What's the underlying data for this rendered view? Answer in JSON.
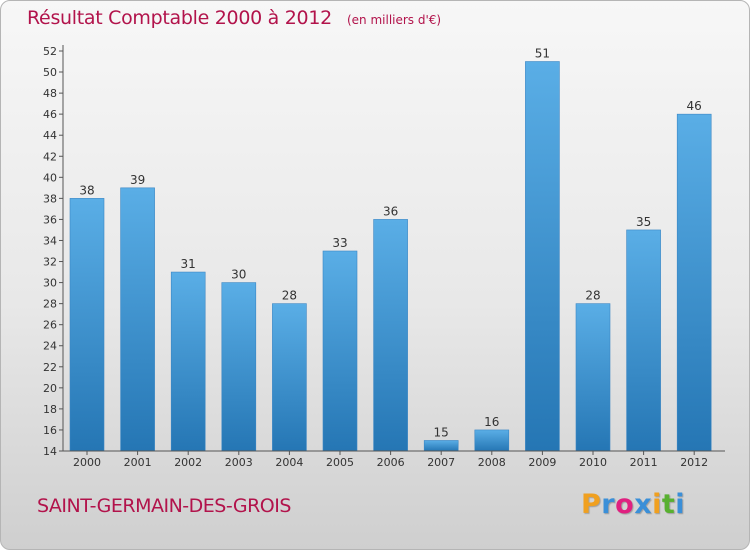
{
  "chart_data": {
    "type": "bar",
    "title": "Résultat Comptable 2000 à 2012",
    "subtitle": "(en milliers d'€)",
    "categories": [
      "2000",
      "2001",
      "2002",
      "2003",
      "2004",
      "2005",
      "2006",
      "2007",
      "2008",
      "2009",
      "2010",
      "2011",
      "2012"
    ],
    "values": [
      38,
      39,
      31,
      30,
      28,
      33,
      36,
      15,
      16,
      51,
      28,
      35,
      46
    ],
    "ylim": [
      14,
      52
    ],
    "yticks": [
      14,
      16,
      18,
      20,
      22,
      24,
      26,
      28,
      30,
      32,
      34,
      36,
      38,
      40,
      42,
      44,
      46,
      48,
      50,
      52
    ],
    "grid": false,
    "legend": "none",
    "bar_color_top": "#5aaee6",
    "bar_color_bottom": "#2576b4"
  },
  "footer": {
    "commune": "SAINT-GERMAIN-DES-GROIS",
    "logo_letters": [
      "P",
      "r",
      "o",
      "x",
      "i",
      "t",
      "i"
    ],
    "logo_colors": [
      "#f0a020",
      "#3a8fd8",
      "#e02080",
      "#3a8fd8",
      "#f0a020",
      "#58b030",
      "#3a8fd8"
    ]
  },
  "colors": {
    "title": "#b2134b",
    "axis": "#555555"
  }
}
